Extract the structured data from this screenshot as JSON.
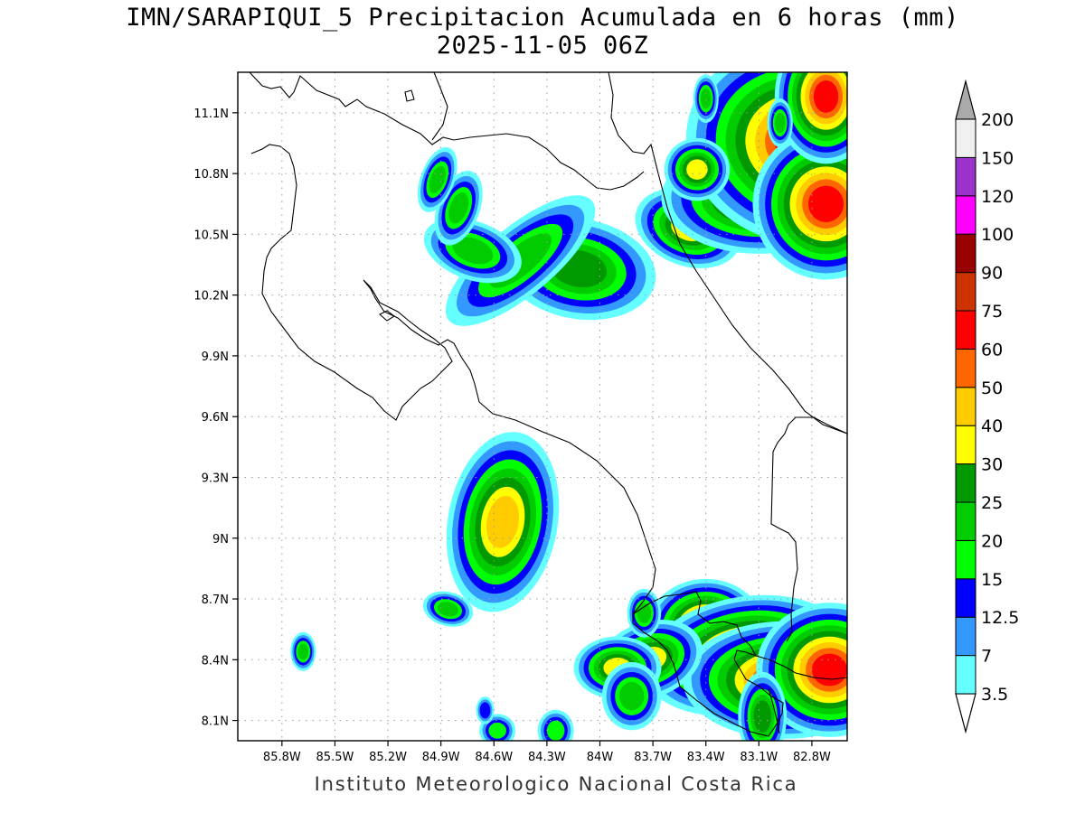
{
  "title": {
    "line1": "IMN/SARAPIQUI_5 Precipitacion Acumulada en 6 horas (mm)",
    "line2": "2025-11-05 06Z"
  },
  "footer": "Instituto Meteorologico Nacional Costa Rica",
  "map": {
    "lon_range": [
      -86.05,
      -82.6
    ],
    "lat_range": [
      8.0,
      11.3
    ],
    "lon_ticks": [
      {
        "value": -85.8,
        "label": "85.8W"
      },
      {
        "value": -85.5,
        "label": "85.5W"
      },
      {
        "value": -85.2,
        "label": "85.2W"
      },
      {
        "value": -84.9,
        "label": "84.9W"
      },
      {
        "value": -84.6,
        "label": "84.6W"
      },
      {
        "value": -84.3,
        "label": "84.3W"
      },
      {
        "value": -84.0,
        "label": "84W"
      },
      {
        "value": -83.7,
        "label": "83.7W"
      },
      {
        "value": -83.4,
        "label": "83.4W"
      },
      {
        "value": -83.1,
        "label": "83.1W"
      },
      {
        "value": -82.8,
        "label": "82.8W"
      }
    ],
    "lat_ticks": [
      {
        "value": 11.1,
        "label": "11.1N"
      },
      {
        "value": 10.8,
        "label": "10.8N"
      },
      {
        "value": 10.5,
        "label": "10.5N"
      },
      {
        "value": 10.2,
        "label": "10.2N"
      },
      {
        "value": 9.9,
        "label": "9.9N"
      },
      {
        "value": 9.6,
        "label": "9.6N"
      },
      {
        "value": 9.3,
        "label": "9.3N"
      },
      {
        "value": 9.0,
        "label": "9N"
      },
      {
        "value": 8.7,
        "label": "8.7N"
      },
      {
        "value": 8.4,
        "label": "8.4N"
      },
      {
        "value": 8.1,
        "label": "8.1N"
      }
    ],
    "grid": true
  },
  "colorbar": {
    "levels": [
      {
        "label": "3.5",
        "color": "#66ffff"
      },
      {
        "label": "7",
        "color": "#3399ff"
      },
      {
        "label": "12.5",
        "color": "#0000ff"
      },
      {
        "label": "15",
        "color": "#00ff00"
      },
      {
        "label": "20",
        "color": "#00cc00"
      },
      {
        "label": "25",
        "color": "#009900"
      },
      {
        "label": "30",
        "color": "#ffff00"
      },
      {
        "label": "40",
        "color": "#ffcc00"
      },
      {
        "label": "50",
        "color": "#ff6600"
      },
      {
        "label": "60",
        "color": "#ff0000"
      },
      {
        "label": "75",
        "color": "#cc3300"
      },
      {
        "label": "90",
        "color": "#990000"
      },
      {
        "label": "100",
        "color": "#ff00ff"
      },
      {
        "label": "120",
        "color": "#9933cc"
      },
      {
        "label": "150",
        "color": "#f0f0f0"
      },
      {
        "label": "200",
        "color": "#aaaaaa"
      }
    ]
  },
  "precip_cells": [
    {
      "lon": -84.12,
      "lat": 10.33,
      "rx": 0.16,
      "ry": 0.09,
      "rot": 10,
      "level": 5
    },
    {
      "lon": -84.45,
      "lat": 10.37,
      "rx": 0.22,
      "ry": 0.07,
      "rot": -40,
      "level": 4
    },
    {
      "lon": -84.72,
      "lat": 10.42,
      "rx": 0.12,
      "ry": 0.06,
      "rot": 20,
      "level": 4
    },
    {
      "lon": -84.8,
      "lat": 10.63,
      "rx": 0.05,
      "ry": 0.08,
      "rot": 20,
      "level": 4
    },
    {
      "lon": -84.92,
      "lat": 10.77,
      "rx": 0.04,
      "ry": 0.07,
      "rot": 20,
      "level": 4
    },
    {
      "lon": -84.55,
      "lat": 9.08,
      "rx": 0.09,
      "ry": 0.13,
      "rot": 10,
      "level": 7
    },
    {
      "lon": -84.86,
      "lat": 8.65,
      "rx": 0.06,
      "ry": 0.035,
      "rot": 15,
      "level": 4
    },
    {
      "lon": -85.68,
      "lat": 8.44,
      "rx": 0.03,
      "ry": 0.04,
      "rot": 0,
      "level": 4
    },
    {
      "lon": -83.5,
      "lat": 10.53,
      "rx": 0.1,
      "ry": 0.06,
      "rot": 20,
      "level": 6
    },
    {
      "lon": -83.1,
      "lat": 10.68,
      "rx": 0.16,
      "ry": 0.08,
      "rot": 0,
      "level": 7
    },
    {
      "lon": -82.85,
      "lat": 10.95,
      "rx": 0.16,
      "ry": 0.12,
      "rot": 10,
      "level": 9
    },
    {
      "lon": -82.72,
      "lat": 10.65,
      "rx": 0.1,
      "ry": 0.09,
      "rot": 0,
      "level": 9
    },
    {
      "lon": -82.72,
      "lat": 11.18,
      "rx": 0.07,
      "ry": 0.08,
      "rot": 0,
      "level": 9
    },
    {
      "lon": -83.45,
      "lat": 10.82,
      "rx": 0.06,
      "ry": 0.05,
      "rot": 0,
      "level": 6
    },
    {
      "lon": -83.4,
      "lat": 8.55,
      "rx": 0.08,
      "ry": 0.06,
      "rot": 0,
      "level": 9
    },
    {
      "lon": -83.18,
      "lat": 8.42,
      "rx": 0.14,
      "ry": 0.07,
      "rot": -10,
      "level": 9
    },
    {
      "lon": -82.95,
      "lat": 8.3,
      "rx": 0.14,
      "ry": 0.07,
      "rot": 0,
      "level": 9
    },
    {
      "lon": -82.7,
      "lat": 8.35,
      "rx": 0.1,
      "ry": 0.08,
      "rot": 0,
      "level": 9
    },
    {
      "lon": -83.72,
      "lat": 8.4,
      "rx": 0.1,
      "ry": 0.06,
      "rot": -20,
      "level": 6
    },
    {
      "lon": -83.9,
      "lat": 8.36,
      "rx": 0.08,
      "ry": 0.05,
      "rot": 0,
      "level": 6
    },
    {
      "lon": -83.75,
      "lat": 8.63,
      "rx": 0.04,
      "ry": 0.05,
      "rot": 0,
      "level": 4
    },
    {
      "lon": -83.08,
      "lat": 8.12,
      "rx": 0.05,
      "ry": 0.08,
      "rot": 0,
      "level": 5
    },
    {
      "lon": -83.82,
      "lat": 8.22,
      "rx": 0.07,
      "ry": 0.07,
      "rot": 0,
      "level": 4
    },
    {
      "lon": -84.25,
      "lat": 8.05,
      "rx": 0.05,
      "ry": 0.05,
      "rot": 0,
      "level": 3
    },
    {
      "lon": -84.58,
      "lat": 8.05,
      "rx": 0.05,
      "ry": 0.04,
      "rot": 0,
      "level": 3
    },
    {
      "lon": -84.65,
      "lat": 8.15,
      "rx": 0.03,
      "ry": 0.04,
      "rot": 0,
      "level": 2
    },
    {
      "lon": -83.4,
      "lat": 11.17,
      "rx": 0.03,
      "ry": 0.05,
      "rot": 0,
      "level": 4
    },
    {
      "lon": -82.98,
      "lat": 11.05,
      "rx": 0.03,
      "ry": 0.05,
      "rot": 0,
      "level": 4
    }
  ]
}
